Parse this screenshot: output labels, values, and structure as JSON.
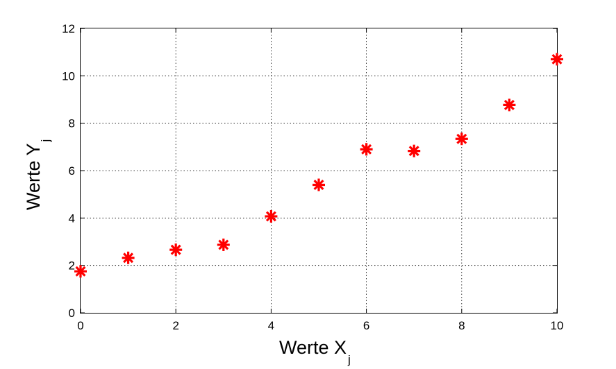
{
  "chart_data": {
    "type": "scatter",
    "x": [
      0,
      1,
      2,
      3,
      4,
      5,
      6,
      7,
      8,
      9,
      10
    ],
    "y": [
      1.75,
      2.32,
      2.66,
      2.87,
      4.07,
      5.4,
      6.9,
      6.83,
      7.34,
      8.77,
      10.7
    ],
    "xlim": [
      0,
      10
    ],
    "ylim": [
      0,
      12
    ],
    "xticks": [
      "0",
      "2",
      "4",
      "6",
      "8",
      "10"
    ],
    "yticks": [
      "0",
      "2",
      "4",
      "6",
      "8",
      "10",
      "12"
    ],
    "xlabel": "Werte X",
    "xlabel_subscript": "j",
    "ylabel": "Werte Y",
    "ylabel_subscript": "j",
    "grid": true,
    "marker": "asterisk",
    "marker_color": "#ff0000"
  }
}
